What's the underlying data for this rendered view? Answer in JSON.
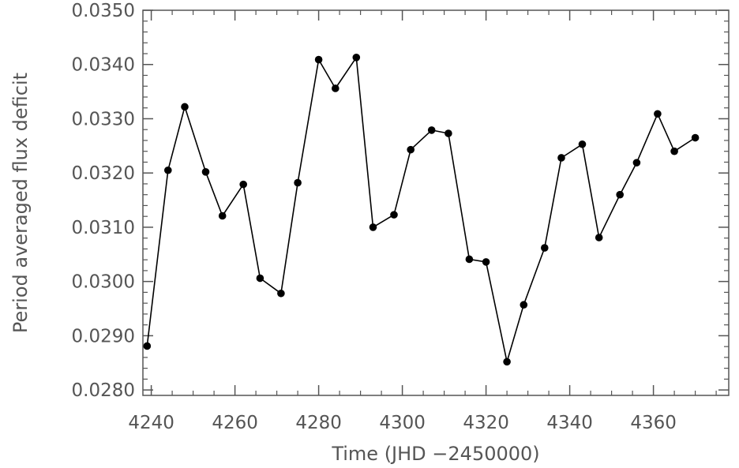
{
  "chart_data": {
    "type": "line",
    "title": "",
    "xlabel": "Time (JHD −2450000)",
    "ylabel": "Period averaged flux deficit",
    "xlim": [
      4238,
      4378
    ],
    "ylim": [
      0.0279,
      0.035
    ],
    "xticks": [
      4240,
      4260,
      4280,
      4300,
      4320,
      4340,
      4360
    ],
    "xtick_labels": [
      "4240",
      "4260",
      "4280",
      "4300",
      "4320",
      "4340",
      "4360"
    ],
    "yticks": [
      0.028,
      0.029,
      0.03,
      0.031,
      0.032,
      0.033,
      0.034,
      0.035
    ],
    "ytick_labels": [
      "0.0280",
      "0.0290",
      "0.0300",
      "0.0310",
      "0.0320",
      "0.0330",
      "0.0340",
      "0.0350"
    ],
    "grid": false,
    "series": [
      {
        "color": "#000000",
        "marker": "filled-circle",
        "x": [
          4239,
          4244,
          4248,
          4253,
          4257,
          4262,
          4266,
          4271,
          4275,
          4280,
          4284,
          4289,
          4293,
          4298,
          4302,
          4307,
          4311,
          4316,
          4320,
          4325,
          4329,
          4334,
          4338,
          4343,
          4347,
          4352,
          4356,
          4361,
          4365,
          4370
        ],
        "y": [
          0.02881,
          0.03205,
          0.03322,
          0.03202,
          0.03121,
          0.03179,
          0.03006,
          0.02978,
          0.03182,
          0.03409,
          0.03356,
          0.03413,
          0.031,
          0.03123,
          0.03243,
          0.03279,
          0.03273,
          0.03041,
          0.03036,
          0.02852,
          0.02957,
          0.03062,
          0.03228,
          0.03253,
          0.03081,
          0.0316,
          0.03219,
          0.03309,
          0.0324,
          0.03265
        ]
      }
    ]
  }
}
